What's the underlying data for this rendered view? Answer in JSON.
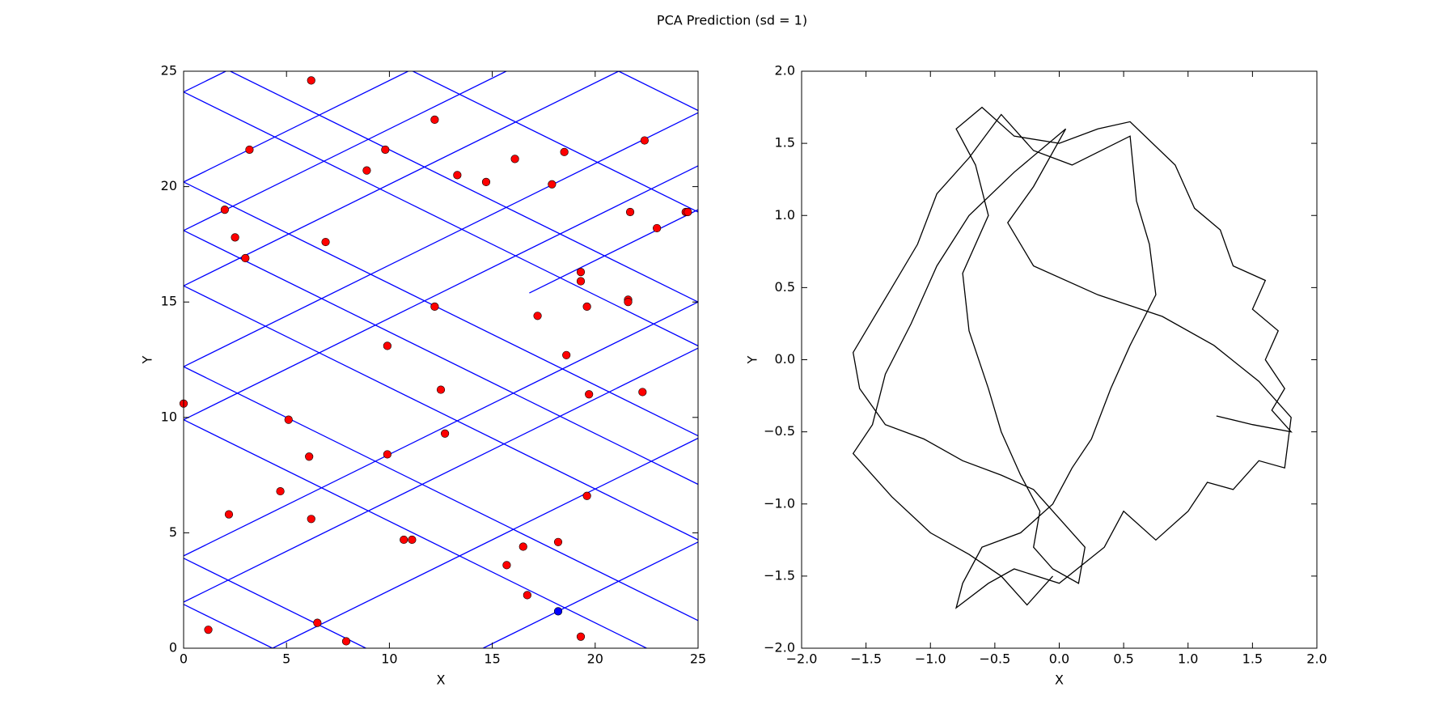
{
  "title": "PCA Prediction (sd = 1)",
  "chart_data": [
    {
      "type": "scatter",
      "xlabel": "X",
      "ylabel": "Y",
      "xlim": [
        0,
        25
      ],
      "ylim": [
        0,
        25
      ],
      "xticks": [
        0,
        5,
        10,
        15,
        20,
        25
      ],
      "yticks": [
        0,
        5,
        10,
        15,
        20,
        25
      ],
      "series": [
        {
          "mode": "line",
          "color": "#0000ff",
          "x": [
            14.55,
            25,
            null,
            4.32,
            25,
            null,
            0,
            25,
            null,
            0,
            25,
            null,
            16.8,
            25,
            null,
            0,
            25,
            null,
            0,
            25,
            null,
            0,
            21.14,
            null,
            0,
            15.68,
            null,
            0,
            10.91,
            null,
            0,
            2.05,
            null,
            0,
            4.32,
            null,
            0,
            8.86,
            null,
            0,
            22.5,
            null,
            0,
            25,
            null,
            0,
            25,
            null,
            0,
            25,
            null,
            0,
            25,
            null,
            0,
            25,
            null,
            2.27,
            25,
            null,
            11.14,
            25,
            null,
            21.14,
            25
          ],
          "y": [
            0,
            4.6,
            null,
            0,
            9.1,
            null,
            2,
            13,
            null,
            4,
            15,
            null,
            15.39,
            19,
            null,
            9.9,
            20.9,
            null,
            12.2,
            23.2,
            null,
            15.7,
            25,
            null,
            18.1,
            25,
            null,
            20.2,
            25,
            null,
            24.1,
            25,
            null,
            1.9,
            0,
            null,
            3.9,
            0,
            null,
            9.9,
            0,
            null,
            12.2,
            1.2,
            null,
            15.7,
            4.7,
            null,
            18.1,
            7.1,
            null,
            20.2,
            9.2,
            null,
            24.1,
            13.1,
            null,
            25,
            15,
            null,
            25,
            18.9,
            null,
            25,
            23.3
          ]
        },
        {
          "mode": "markers",
          "color": "#ff0000",
          "x": [
            6.2,
            3.2,
            2.0,
            2.5,
            3.0,
            12.2,
            9.8,
            8.9,
            13.3,
            14.7,
            16.1,
            18.5,
            17.9,
            22.4,
            21.7,
            23.0,
            24.4,
            24.5,
            6.9,
            19.3,
            19.3,
            12.2,
            19.6,
            21.6,
            21.6,
            17.2,
            9.9,
            18.6,
            12.5,
            22.3,
            19.7,
            0,
            5.1,
            12.7,
            6.1,
            9.9,
            4.7,
            19.6,
            2.2,
            6.2,
            10.7,
            11.1,
            16.5,
            18.2,
            15.7,
            16.7,
            6.5,
            1.2,
            7.9,
            19.3
          ],
          "y": [
            24.6,
            21.6,
            19.0,
            17.8,
            16.9,
            22.9,
            21.6,
            20.7,
            20.5,
            20.2,
            21.2,
            21.5,
            20.1,
            22.0,
            18.9,
            18.2,
            18.9,
            18.9,
            17.6,
            16.3,
            15.9,
            14.8,
            14.8,
            15.1,
            15.0,
            14.4,
            13.1,
            12.7,
            11.2,
            11.1,
            11.0,
            10.6,
            9.9,
            9.3,
            8.3,
            8.4,
            6.8,
            6.6,
            5.8,
            5.6,
            4.7,
            4.7,
            4.4,
            4.6,
            3.6,
            2.3,
            1.1,
            0.8,
            0.3,
            0.5
          ]
        },
        {
          "mode": "markers",
          "color": "#0000ff",
          "x": [
            18.2
          ],
          "y": [
            1.6
          ]
        }
      ]
    },
    {
      "type": "line",
      "xlabel": "X",
      "ylabel": "Y",
      "xlim": [
        -2,
        2
      ],
      "ylim": [
        -2,
        2
      ],
      "xticks": [
        {
          "value": -2,
          "label": "−2.0"
        },
        {
          "value": -1.5,
          "label": "−1.5"
        },
        {
          "value": -1,
          "label": "−1.0"
        },
        {
          "value": -0.5,
          "label": "−0.5"
        },
        {
          "value": 0,
          "label": "0.0"
        },
        {
          "value": 0.5,
          "label": "0.5"
        },
        {
          "value": 1,
          "label": "1.0"
        },
        {
          "value": 1.5,
          "label": "1.5"
        },
        {
          "value": 2,
          "label": "2.0"
        }
      ],
      "yticks": [
        {
          "value": -2,
          "label": "−2.0"
        },
        {
          "value": -1.5,
          "label": "−1.5"
        },
        {
          "value": -1,
          "label": "−1.0"
        },
        {
          "value": -0.5,
          "label": "−0.5"
        },
        {
          "value": 0,
          "label": "0.0"
        },
        {
          "value": 0.5,
          "label": "0.5"
        },
        {
          "value": 1,
          "label": "1.0"
        },
        {
          "value": 1.5,
          "label": "1.5"
        },
        {
          "value": 2,
          "label": "2.0"
        }
      ],
      "series": [
        {
          "mode": "line",
          "color": "#000000",
          "x": [
            1.22,
            1.5,
            1.8,
            1.65,
            1.75,
            1.6,
            1.7,
            1.5,
            1.6,
            1.35,
            1.25,
            1.05,
            0.9,
            0.55,
            0.3,
            0.0,
            -0.35,
            -0.6,
            -0.8,
            -0.65,
            -0.55,
            -0.75,
            -0.7,
            -0.55,
            -0.45,
            -0.3,
            -0.15,
            -0.2,
            -0.05,
            0.15,
            0.2,
            0.0,
            -0.2,
            -0.45,
            -0.75,
            -1.05,
            -1.35,
            -1.55,
            -1.6,
            -1.5,
            -1.3,
            -1.1,
            -0.95,
            -0.7,
            -0.45,
            -0.2,
            0.1,
            0.55,
            0.6,
            0.7,
            0.75,
            0.55,
            0.4,
            0.25,
            0.1,
            -0.05,
            -0.3,
            -0.6,
            -0.75,
            -0.8,
            -0.55,
            -0.35,
            0.0,
            0.35,
            0.5,
            0.75,
            1.0,
            1.15,
            1.35,
            1.55,
            1.75,
            1.8,
            1.55,
            1.2,
            0.8,
            0.3,
            -0.2,
            -0.4,
            -0.2,
            0.05,
            -0.35,
            -0.7,
            -0.95,
            -1.15,
            -1.35,
            -1.45,
            -1.6,
            -1.3,
            -1.0,
            -0.7,
            -0.45,
            -0.25,
            -0.05
          ],
          "y": [
            -0.39,
            -0.45,
            -0.5,
            -0.35,
            -0.2,
            0.0,
            0.2,
            0.35,
            0.55,
            0.65,
            0.9,
            1.05,
            1.35,
            1.65,
            1.6,
            1.5,
            1.55,
            1.75,
            1.6,
            1.35,
            1.0,
            0.6,
            0.2,
            -0.2,
            -0.5,
            -0.8,
            -1.05,
            -1.3,
            -1.45,
            -1.55,
            -1.3,
            -1.1,
            -0.9,
            -0.8,
            -0.7,
            -0.55,
            -0.45,
            -0.2,
            0.05,
            0.2,
            0.5,
            0.8,
            1.15,
            1.4,
            1.7,
            1.45,
            1.35,
            1.55,
            1.1,
            0.8,
            0.45,
            0.1,
            -0.2,
            -0.55,
            -0.75,
            -1.0,
            -1.2,
            -1.3,
            -1.55,
            -1.72,
            -1.55,
            -1.45,
            -1.55,
            -1.3,
            -1.05,
            -1.25,
            -1.05,
            -0.85,
            -0.9,
            -0.7,
            -0.75,
            -0.4,
            -0.15,
            0.1,
            0.3,
            0.45,
            0.65,
            0.95,
            1.2,
            1.6,
            1.3,
            1.0,
            0.65,
            0.25,
            -0.1,
            -0.45,
            -0.65,
            -0.95,
            -1.2,
            -1.35,
            -1.5,
            -1.7,
            -1.5
          ]
        }
      ]
    }
  ]
}
